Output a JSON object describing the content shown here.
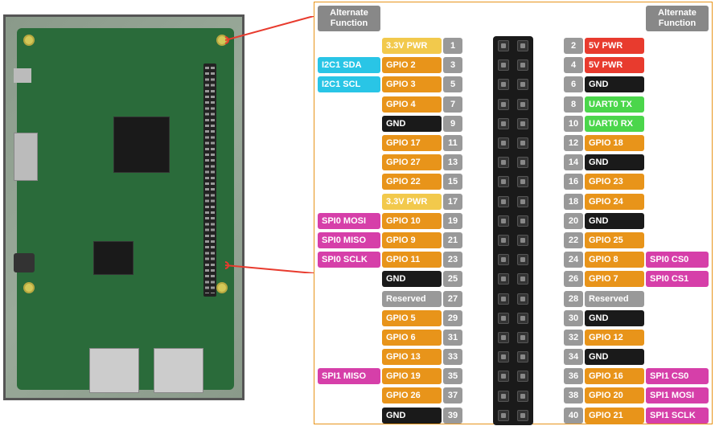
{
  "colors": {
    "pwr33": "#f2c94c",
    "pwr5": "#e83b2e",
    "gnd": "#1a1a1a",
    "gpio": "#e8941a",
    "uart": "#4bd64b",
    "reserved": "#999999",
    "i2c": "#29c5e6",
    "spi": "#d63fa9",
    "numbg": "#999999",
    "header": "#888888",
    "border": "#e8941a"
  },
  "headers": {
    "left": "Alternate Function",
    "right": "Alternate Function"
  },
  "left": [
    {
      "alt": "",
      "altc": "",
      "func": "3.3V PWR",
      "fc": "pwr33",
      "num": 1
    },
    {
      "alt": "I2C1 SDA",
      "altc": "i2c",
      "func": "GPIO 2",
      "fc": "gpio",
      "num": 3
    },
    {
      "alt": "I2C1 SCL",
      "altc": "i2c",
      "func": "GPIO 3",
      "fc": "gpio",
      "num": 5
    },
    {
      "alt": "",
      "altc": "",
      "func": "GPIO 4",
      "fc": "gpio",
      "num": 7
    },
    {
      "alt": "",
      "altc": "",
      "func": "GND",
      "fc": "gnd",
      "num": 9
    },
    {
      "alt": "",
      "altc": "",
      "func": "GPIO 17",
      "fc": "gpio",
      "num": 11
    },
    {
      "alt": "",
      "altc": "",
      "func": "GPIO 27",
      "fc": "gpio",
      "num": 13
    },
    {
      "alt": "",
      "altc": "",
      "func": "GPIO 22",
      "fc": "gpio",
      "num": 15
    },
    {
      "alt": "",
      "altc": "",
      "func": "3.3V PWR",
      "fc": "pwr33",
      "num": 17
    },
    {
      "alt": "SPI0 MOSI",
      "altc": "spi",
      "func": "GPIO 10",
      "fc": "gpio",
      "num": 19
    },
    {
      "alt": "SPI0 MISO",
      "altc": "spi",
      "func": "GPIO 9",
      "fc": "gpio",
      "num": 21
    },
    {
      "alt": "SPI0 SCLK",
      "altc": "spi",
      "func": "GPIO 11",
      "fc": "gpio",
      "num": 23
    },
    {
      "alt": "",
      "altc": "",
      "func": "GND",
      "fc": "gnd",
      "num": 25
    },
    {
      "alt": "",
      "altc": "",
      "func": "Reserved",
      "fc": "reserved",
      "num": 27
    },
    {
      "alt": "",
      "altc": "",
      "func": "GPIO 5",
      "fc": "gpio",
      "num": 29
    },
    {
      "alt": "",
      "altc": "",
      "func": "GPIO 6",
      "fc": "gpio",
      "num": 31
    },
    {
      "alt": "",
      "altc": "",
      "func": "GPIO 13",
      "fc": "gpio",
      "num": 33
    },
    {
      "alt": "SPI1 MISO",
      "altc": "spi",
      "func": "GPIO 19",
      "fc": "gpio",
      "num": 35
    },
    {
      "alt": "",
      "altc": "",
      "func": "GPIO 26",
      "fc": "gpio",
      "num": 37
    },
    {
      "alt": "",
      "altc": "",
      "func": "GND",
      "fc": "gnd",
      "num": 39
    }
  ],
  "right": [
    {
      "num": 2,
      "func": "5V PWR",
      "fc": "pwr5",
      "alt": "",
      "altc": ""
    },
    {
      "num": 4,
      "func": "5V PWR",
      "fc": "pwr5",
      "alt": "",
      "altc": ""
    },
    {
      "num": 6,
      "func": "GND",
      "fc": "gnd",
      "alt": "",
      "altc": ""
    },
    {
      "num": 8,
      "func": "UART0 TX",
      "fc": "uart",
      "alt": "",
      "altc": ""
    },
    {
      "num": 10,
      "func": "UART0 RX",
      "fc": "uart",
      "alt": "",
      "altc": ""
    },
    {
      "num": 12,
      "func": "GPIO 18",
      "fc": "gpio",
      "alt": "",
      "altc": ""
    },
    {
      "num": 14,
      "func": "GND",
      "fc": "gnd",
      "alt": "",
      "altc": ""
    },
    {
      "num": 16,
      "func": "GPIO 23",
      "fc": "gpio",
      "alt": "",
      "altc": ""
    },
    {
      "num": 18,
      "func": "GPIO 24",
      "fc": "gpio",
      "alt": "",
      "altc": ""
    },
    {
      "num": 20,
      "func": "GND",
      "fc": "gnd",
      "alt": "",
      "altc": ""
    },
    {
      "num": 22,
      "func": "GPIO 25",
      "fc": "gpio",
      "alt": "",
      "altc": ""
    },
    {
      "num": 24,
      "func": "GPIO 8",
      "fc": "gpio",
      "alt": "SPI0 CS0",
      "altc": "spi"
    },
    {
      "num": 26,
      "func": "GPIO 7",
      "fc": "gpio",
      "alt": "SPI0 CS1",
      "altc": "spi"
    },
    {
      "num": 28,
      "func": "Reserved",
      "fc": "reserved",
      "alt": "",
      "altc": ""
    },
    {
      "num": 30,
      "func": "GND",
      "fc": "gnd",
      "alt": "",
      "altc": ""
    },
    {
      "num": 32,
      "func": "GPIO 12",
      "fc": "gpio",
      "alt": "",
      "altc": ""
    },
    {
      "num": 34,
      "func": "GND",
      "fc": "gnd",
      "alt": "",
      "altc": ""
    },
    {
      "num": 36,
      "func": "GPIO 16",
      "fc": "gpio",
      "alt": "SPI1 CS0",
      "altc": "spi"
    },
    {
      "num": 38,
      "func": "GPIO 20",
      "fc": "gpio",
      "alt": "SPI1 MOSI",
      "altc": "spi"
    },
    {
      "num": 40,
      "func": "GPIO 21",
      "fc": "gpio",
      "alt": "SPI1 SCLK",
      "altc": "spi"
    }
  ]
}
